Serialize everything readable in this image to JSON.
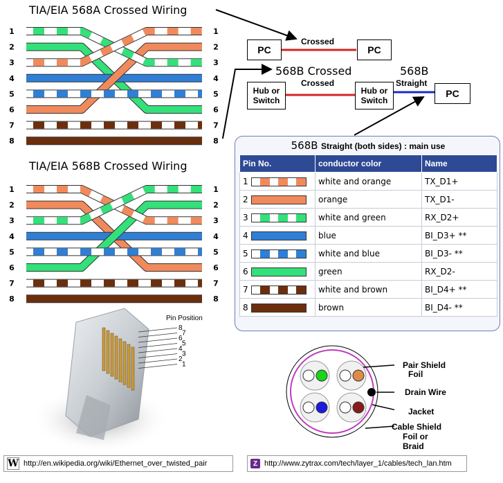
{
  "diagram_a": {
    "title": "TIA/EIA 568A Crossed Wiring",
    "left_pins": [
      "1",
      "2",
      "3",
      "4",
      "5",
      "6",
      "7",
      "8"
    ],
    "right_pins": [
      "1",
      "2",
      "3",
      "4",
      "5",
      "6",
      "7",
      "8"
    ],
    "left_colors": [
      "white-green",
      "green",
      "white-orange",
      "blue",
      "white-blue",
      "orange",
      "white-brown",
      "brown"
    ],
    "right_colors": [
      "white-orange",
      "orange",
      "white-green",
      "blue",
      "white-blue",
      "green",
      "white-brown",
      "brown"
    ]
  },
  "diagram_b": {
    "title": "TIA/EIA 568B Crossed Wiring",
    "left_pins": [
      "1",
      "2",
      "3",
      "4",
      "5",
      "6",
      "7",
      "8"
    ],
    "right_pins": [
      "1",
      "2",
      "3",
      "4",
      "5",
      "6",
      "7",
      "8"
    ],
    "left_colors": [
      "white-orange",
      "orange",
      "white-green",
      "blue",
      "white-blue",
      "green",
      "white-brown",
      "brown"
    ],
    "right_colors": [
      "white-green",
      "green",
      "white-orange",
      "blue",
      "white-blue",
      "orange",
      "white-brown",
      "brown"
    ]
  },
  "wire_colors": {
    "orange": "#f08a5d",
    "green": "#33e07a",
    "blue": "#2f7fd6",
    "brown": "#6b2f0e",
    "crossover_red": "#d42424",
    "straight_blue": "#1a2cc8"
  },
  "connections": {
    "pc_left": "PC",
    "pc_right": "PC",
    "crossed_label_1": "Crossed",
    "crossed568b_title": "568B Crossed",
    "crossed_label_2": "Crossed",
    "hub1": "Hub or Switch",
    "hub2": "Hub or Switch",
    "straight_title": "568B",
    "straight_label": "Straight",
    "pc_straight": "PC"
  },
  "pin_table": {
    "title_big": "568B",
    "title_small": "Straight (both sides) : main use",
    "headers": [
      "Pin No.",
      "conductor color",
      "Name"
    ],
    "rows": [
      {
        "pin": "1",
        "color": "white and orange",
        "name": "TX_D1+",
        "swatch": "white-orange"
      },
      {
        "pin": "2",
        "color": "orange",
        "name": "TX_D1-",
        "swatch": "orange"
      },
      {
        "pin": "3",
        "color": "white and green",
        "name": "RX_D2+",
        "swatch": "white-green"
      },
      {
        "pin": "4",
        "color": "blue",
        "name": "BI_D3+ **",
        "swatch": "blue"
      },
      {
        "pin": "5",
        "color": "white and blue",
        "name": "BI_D3- **",
        "swatch": "white-blue"
      },
      {
        "pin": "6",
        "color": "green",
        "name": "RX_D2-",
        "swatch": "green"
      },
      {
        "pin": "7",
        "color": "white and brown",
        "name": "BI_D4+ **",
        "swatch": "white-brown"
      },
      {
        "pin": "8",
        "color": "brown",
        "name": "BI_D4- **",
        "swatch": "brown"
      }
    ]
  },
  "connector": {
    "pin_position_label": "Pin Position",
    "pin_numbers": [
      "8",
      "7",
      "6",
      "5",
      "4",
      "3",
      "2",
      "1"
    ]
  },
  "cable": {
    "pair_shield": "Pair Shield",
    "foil": "Foil",
    "drain_wire": "Drain Wire",
    "jacket": "Jacket",
    "cable_shield": "Cable Shield",
    "foil_or": "Foil or",
    "braid": "Braid"
  },
  "footers": {
    "left_url": "http://en.wikipedia.org/wiki/Ethernet_over_twisted_pair",
    "right_url": "http://www.zytrax.com/tech/layer_1/cables/tech_lan.htm"
  }
}
